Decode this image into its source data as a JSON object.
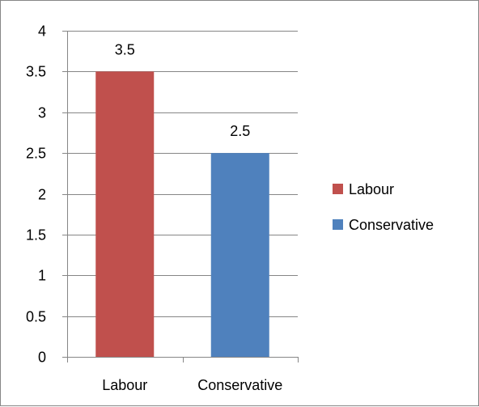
{
  "chart_data": {
    "type": "bar",
    "categories": [
      "Labour",
      "Conservative"
    ],
    "values": [
      3.5,
      2.5
    ],
    "data_labels": [
      "3.5",
      "2.5"
    ],
    "colors": [
      "#C0504D",
      "#4F81BD"
    ],
    "legend": {
      "placement": "right",
      "entries": [
        {
          "label": "Labour",
          "color": "#C0504D"
        },
        {
          "label": "Conservative",
          "color": "#4F81BD"
        }
      ]
    },
    "title": "",
    "xlabel": "",
    "ylabel": "",
    "ylim": [
      0,
      4
    ],
    "yticks": [
      "0",
      "0.5",
      "1",
      "1.5",
      "2",
      "2.5",
      "3",
      "3.5",
      "4"
    ],
    "grid": true
  }
}
